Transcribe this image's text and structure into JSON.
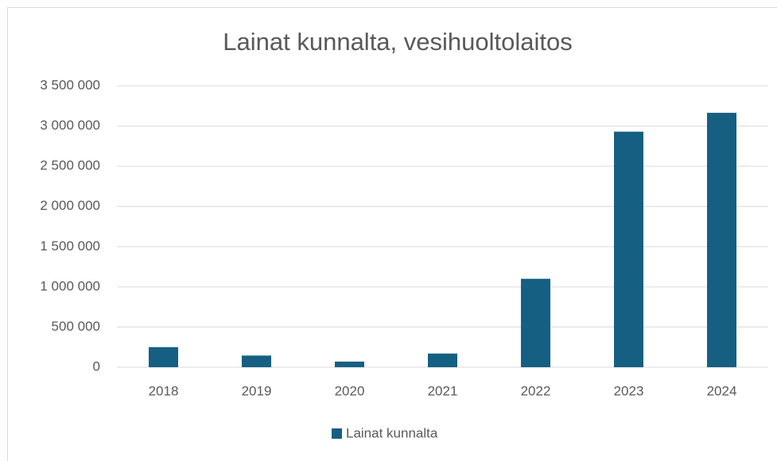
{
  "chart_data": {
    "type": "bar",
    "title": "Lainat kunnalta, vesihuoltolaitos",
    "categories": [
      "2018",
      "2019",
      "2020",
      "2021",
      "2022",
      "2023",
      "2024"
    ],
    "series": [
      {
        "name": "Lainat kunnalta",
        "color": "#156082",
        "values": [
          250000,
          145000,
          70000,
          170000,
          1100000,
          2930000,
          3165000
        ]
      }
    ],
    "ylim": [
      0,
      3500000
    ],
    "yticks": [
      0,
      {
        "value": 500000,
        "label": "500 000"
      },
      {
        "value": 1000000,
        "label": "1 000 000"
      },
      {
        "value": 1500000,
        "label": "1 500 000"
      },
      {
        "value": 2000000,
        "label": "2 000 000"
      },
      {
        "value": 2500000,
        "label": "2 500 000"
      },
      {
        "value": 3000000,
        "label": "3 000 000"
      },
      {
        "value": 3500000,
        "label": "3 500 000"
      }
    ],
    "grid": true,
    "legend": "bottom"
  }
}
